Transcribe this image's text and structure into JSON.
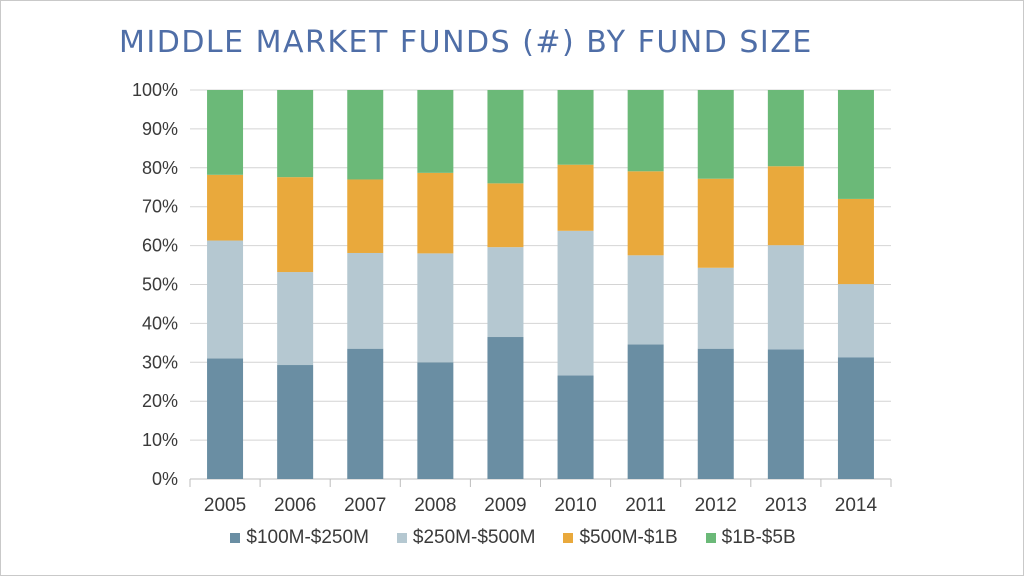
{
  "chart_data": {
    "type": "bar",
    "stacked": true,
    "title": "MIDDLE MARKET FUNDS (#) BY FUND SIZE",
    "categories": [
      "2005",
      "2006",
      "2007",
      "2008",
      "2009",
      "2010",
      "2011",
      "2012",
      "2013",
      "2014"
    ],
    "y_ticks": [
      "0%",
      "10%",
      "20%",
      "30%",
      "40%",
      "50%",
      "60%",
      "70%",
      "80%",
      "90%",
      "100%"
    ],
    "ylim": [
      0,
      100
    ],
    "unit": "%",
    "grid": true,
    "legend_position": "bottom",
    "series": [
      {
        "name": "$100M-$250M",
        "color": "#6a8ea3",
        "values": [
          31.0,
          29.3,
          33.5,
          30.0,
          36.5,
          26.6,
          34.6,
          33.5,
          33.3,
          31.3
        ]
      },
      {
        "name": "$250M-$500M",
        "color": "#b5c8d1",
        "values": [
          30.3,
          23.9,
          24.6,
          28.0,
          23.1,
          37.2,
          22.9,
          20.8,
          26.8,
          18.8
        ]
      },
      {
        "name": "$500M-$1B",
        "color": "#e9a93c",
        "values": [
          16.9,
          24.4,
          18.9,
          20.7,
          16.4,
          17.0,
          21.6,
          22.9,
          20.3,
          21.9
        ]
      },
      {
        "name": "$1B-$5B",
        "color": "#6bb978",
        "values": [
          21.8,
          22.4,
          23.0,
          21.3,
          24.0,
          19.2,
          20.9,
          22.8,
          19.6,
          28.0
        ]
      }
    ]
  }
}
